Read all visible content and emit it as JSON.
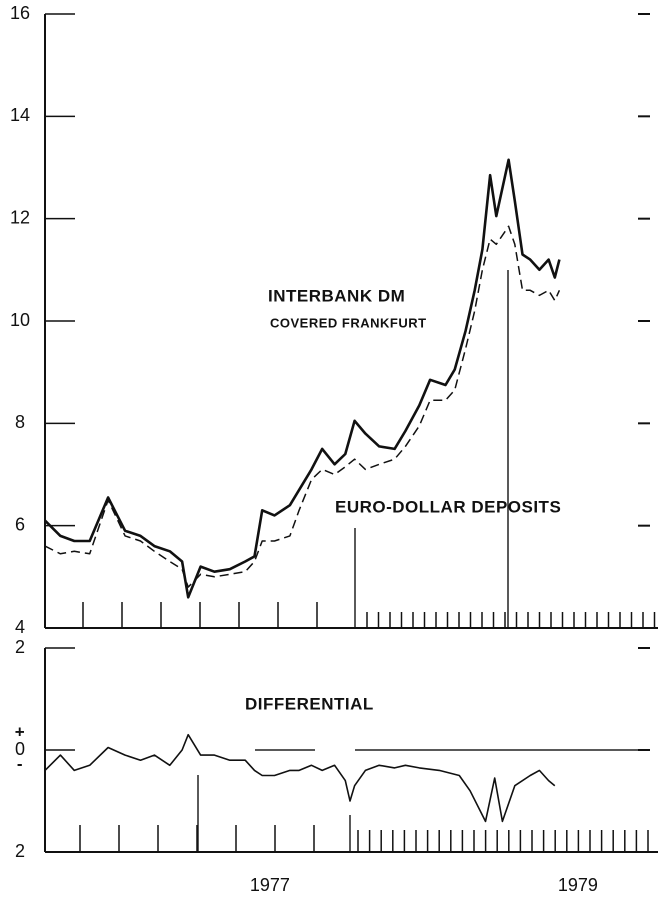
{
  "chart_data": [
    {
      "type": "line",
      "annotations": [
        "INTERBANK DM",
        "COVERED FRANKFURT",
        "EURO-DOLLAR DEPOSITS"
      ],
      "x": [
        1975.54,
        1975.64,
        1975.73,
        1975.83,
        1975.95,
        1976.06,
        1976.16,
        1976.25,
        1976.35,
        1976.43,
        1976.47,
        1976.55,
        1976.64,
        1976.74,
        1976.84,
        1976.9,
        1976.95,
        1977.03,
        1977.13,
        1977.19,
        1977.27,
        1977.34,
        1977.42,
        1977.49,
        1977.55,
        1977.62,
        1977.71,
        1977.81,
        1977.88,
        1977.97,
        1978.04,
        1978.14,
        1978.2,
        1978.27,
        1978.33,
        1978.38,
        1978.43,
        1978.47,
        1978.55,
        1978.59,
        1978.64,
        1978.69,
        1978.75,
        1978.81,
        1978.85,
        1978.88
      ],
      "series": [
        {
          "color": "#111111",
          "style": "solid",
          "width": 2.6,
          "values": [
            6.1,
            5.8,
            5.7,
            5.7,
            6.55,
            5.9,
            5.8,
            5.6,
            5.5,
            5.3,
            4.6,
            5.2,
            5.1,
            5.15,
            5.3,
            5.4,
            6.3,
            6.2,
            6.4,
            6.7,
            7.1,
            7.5,
            7.2,
            7.4,
            8.05,
            7.8,
            7.55,
            7.5,
            7.85,
            8.35,
            8.85,
            8.75,
            9.05,
            9.8,
            10.6,
            11.4,
            12.85,
            12.05,
            13.15,
            12.35,
            11.3,
            11.2,
            11.0,
            11.2,
            10.85,
            11.2
          ]
        },
        {
          "color": "#111111",
          "style": "dashed",
          "width": 1.5,
          "values": [
            5.6,
            5.45,
            5.5,
            5.45,
            6.5,
            5.8,
            5.7,
            5.5,
            5.3,
            5.15,
            4.8,
            5.05,
            5.0,
            5.05,
            5.1,
            5.3,
            5.7,
            5.7,
            5.8,
            6.3,
            6.9,
            7.1,
            7.0,
            7.15,
            7.3,
            7.1,
            7.2,
            7.3,
            7.55,
            7.95,
            8.45,
            8.45,
            8.65,
            9.45,
            10.2,
            11.0,
            11.6,
            11.5,
            11.85,
            11.5,
            10.6,
            10.6,
            10.5,
            10.6,
            10.4,
            10.6
          ]
        }
      ],
      "xlim": [
        1975.54,
        1979.52
      ],
      "ylim": [
        4,
        16
      ],
      "yticks": [
        4,
        6,
        8,
        10,
        12,
        14,
        16
      ]
    },
    {
      "type": "line",
      "annotations": [
        "DIFFERENTIAL",
        "+",
        "-"
      ],
      "x": [
        1975.54,
        1975.64,
        1975.73,
        1975.83,
        1975.95,
        1976.06,
        1976.16,
        1976.25,
        1976.35,
        1976.43,
        1976.47,
        1976.55,
        1976.64,
        1976.74,
        1976.84,
        1976.9,
        1976.95,
        1977.03,
        1977.13,
        1977.19,
        1977.27,
        1977.34,
        1977.42,
        1977.49,
        1977.52,
        1977.55,
        1977.62,
        1977.71,
        1977.81,
        1977.88,
        1977.97,
        1978.1,
        1978.23,
        1978.3,
        1978.4,
        1978.46,
        1978.51,
        1978.59,
        1978.69,
        1978.75,
        1978.81,
        1978.85
      ],
      "series": [
        {
          "color": "#111111",
          "style": "solid",
          "width": 1.6,
          "values": [
            -0.4,
            -0.1,
            -0.4,
            -0.3,
            0.05,
            -0.1,
            -0.2,
            -0.1,
            -0.3,
            0,
            0.3,
            -0.1,
            -0.1,
            -0.2,
            -0.2,
            -0.4,
            -0.5,
            -0.5,
            -0.4,
            -0.4,
            -0.3,
            -0.4,
            -0.3,
            -0.6,
            -1.0,
            -0.7,
            -0.4,
            -0.3,
            -0.35,
            -0.3,
            -0.35,
            -0.4,
            -0.5,
            -0.8,
            -1.4,
            -0.55,
            -1.4,
            -0.7,
            -0.5,
            -0.4,
            -0.6,
            -0.7
          ]
        }
      ],
      "xlim": [
        1975.54,
        1979.52
      ],
      "xticks": [
        1977,
        1979
      ],
      "ylim": [
        -2,
        2
      ],
      "yticks": [
        {
          "value": 2,
          "label": "2"
        },
        {
          "value": 0,
          "label": "0"
        },
        {
          "value": -2,
          "label": "2"
        }
      ]
    }
  ]
}
